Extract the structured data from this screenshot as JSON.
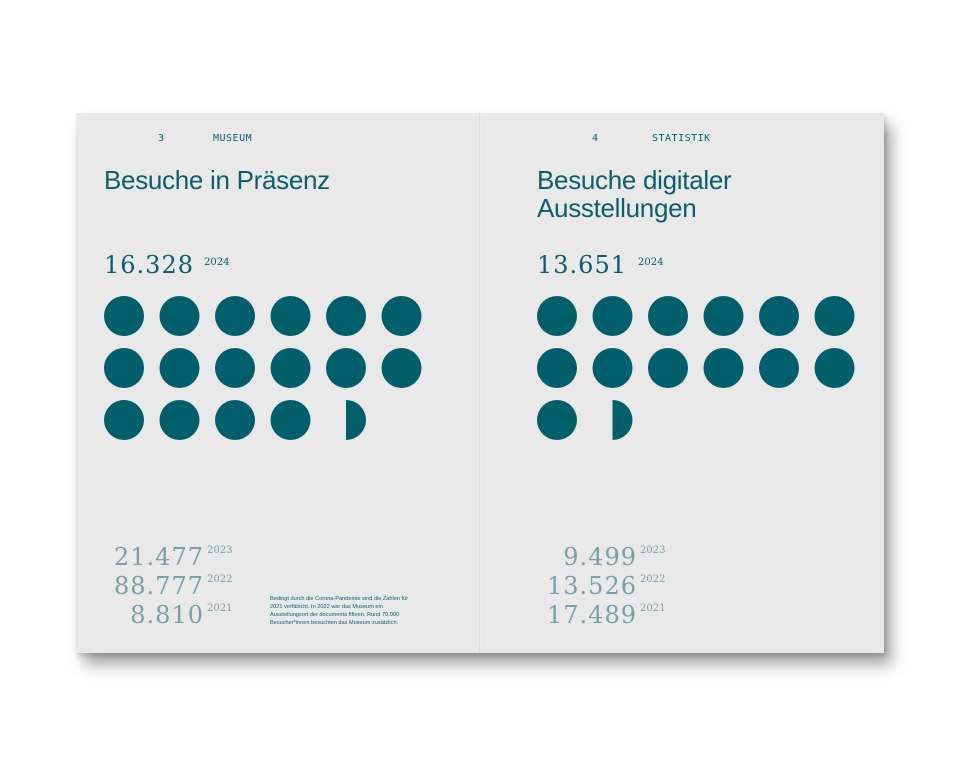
{
  "left_page": {
    "page_number": "3",
    "section": "MUSEUM",
    "title": "Besuche in Präsenz",
    "current": {
      "value": "16.328",
      "year": "2024"
    },
    "dot_chart": {
      "full_dots": 16,
      "partial_dot_fraction": 0.5,
      "per_row": 6,
      "color": "#005f6b"
    },
    "history": [
      {
        "value": "21.477",
        "year": "2023"
      },
      {
        "value": "88.777",
        "year": "2022"
      },
      {
        "value": "8.810",
        "year": "2021"
      }
    ],
    "note": "Bedingt durch die Corona-Pandemie sind die Zahlen für 2021 verfälscht. In 2022 war das Museum ein Ausstellungsort der documenta fifteen. Rund 70.000 Besucher*innen besuchten das Museum zusätzlich."
  },
  "right_page": {
    "page_number": "4",
    "section": "STATISTIK",
    "title_line1": "Besuche digitaler",
    "title_line2": "Ausstellungen",
    "current": {
      "value": "13.651",
      "year": "2024"
    },
    "dot_chart": {
      "full_dots": 13,
      "partial_dot_fraction": 0.5,
      "per_row": 6,
      "color": "#005f6b"
    },
    "history": [
      {
        "value": "9.499",
        "year": "2023"
      },
      {
        "value": "13.526",
        "year": "2022"
      },
      {
        "value": "17.489",
        "year": "2021"
      }
    ]
  }
}
